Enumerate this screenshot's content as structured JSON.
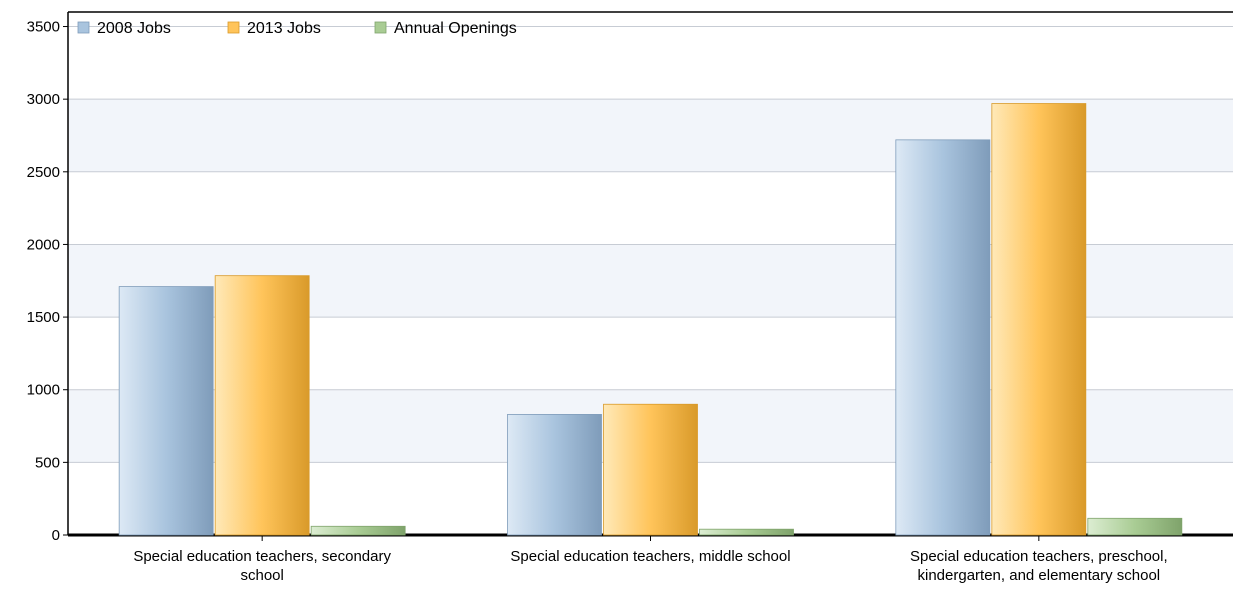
{
  "chart_data": {
    "type": "bar",
    "categories": [
      [
        "Special education teachers, secondary",
        "school"
      ],
      [
        "Special education teachers, middle school"
      ],
      [
        "Special education teachers, preschool,",
        "kindergarten, and elementary school"
      ]
    ],
    "series": [
      {
        "name": "2008 Jobs",
        "values": [
          1710,
          830,
          2720
        ],
        "color": "#a9c4de",
        "color_light": "#dde9f5",
        "color_dark": "#7f9cba"
      },
      {
        "name": "2013 Jobs",
        "values": [
          1785,
          900,
          2970
        ],
        "color": "#ffc45a",
        "color_light": "#ffe9b8",
        "color_dark": "#d99a2a"
      },
      {
        "name": "Annual Openings",
        "values": [
          60,
          40,
          115
        ],
        "color": "#a9cc94",
        "color_light": "#dcedd2",
        "color_dark": "#7fa36b"
      }
    ],
    "yticks": [
      0,
      500,
      1000,
      1500,
      2000,
      2500,
      3000,
      3500
    ],
    "ylim": [
      0,
      3600
    ],
    "legend_position": "top-left",
    "grid": true
  }
}
